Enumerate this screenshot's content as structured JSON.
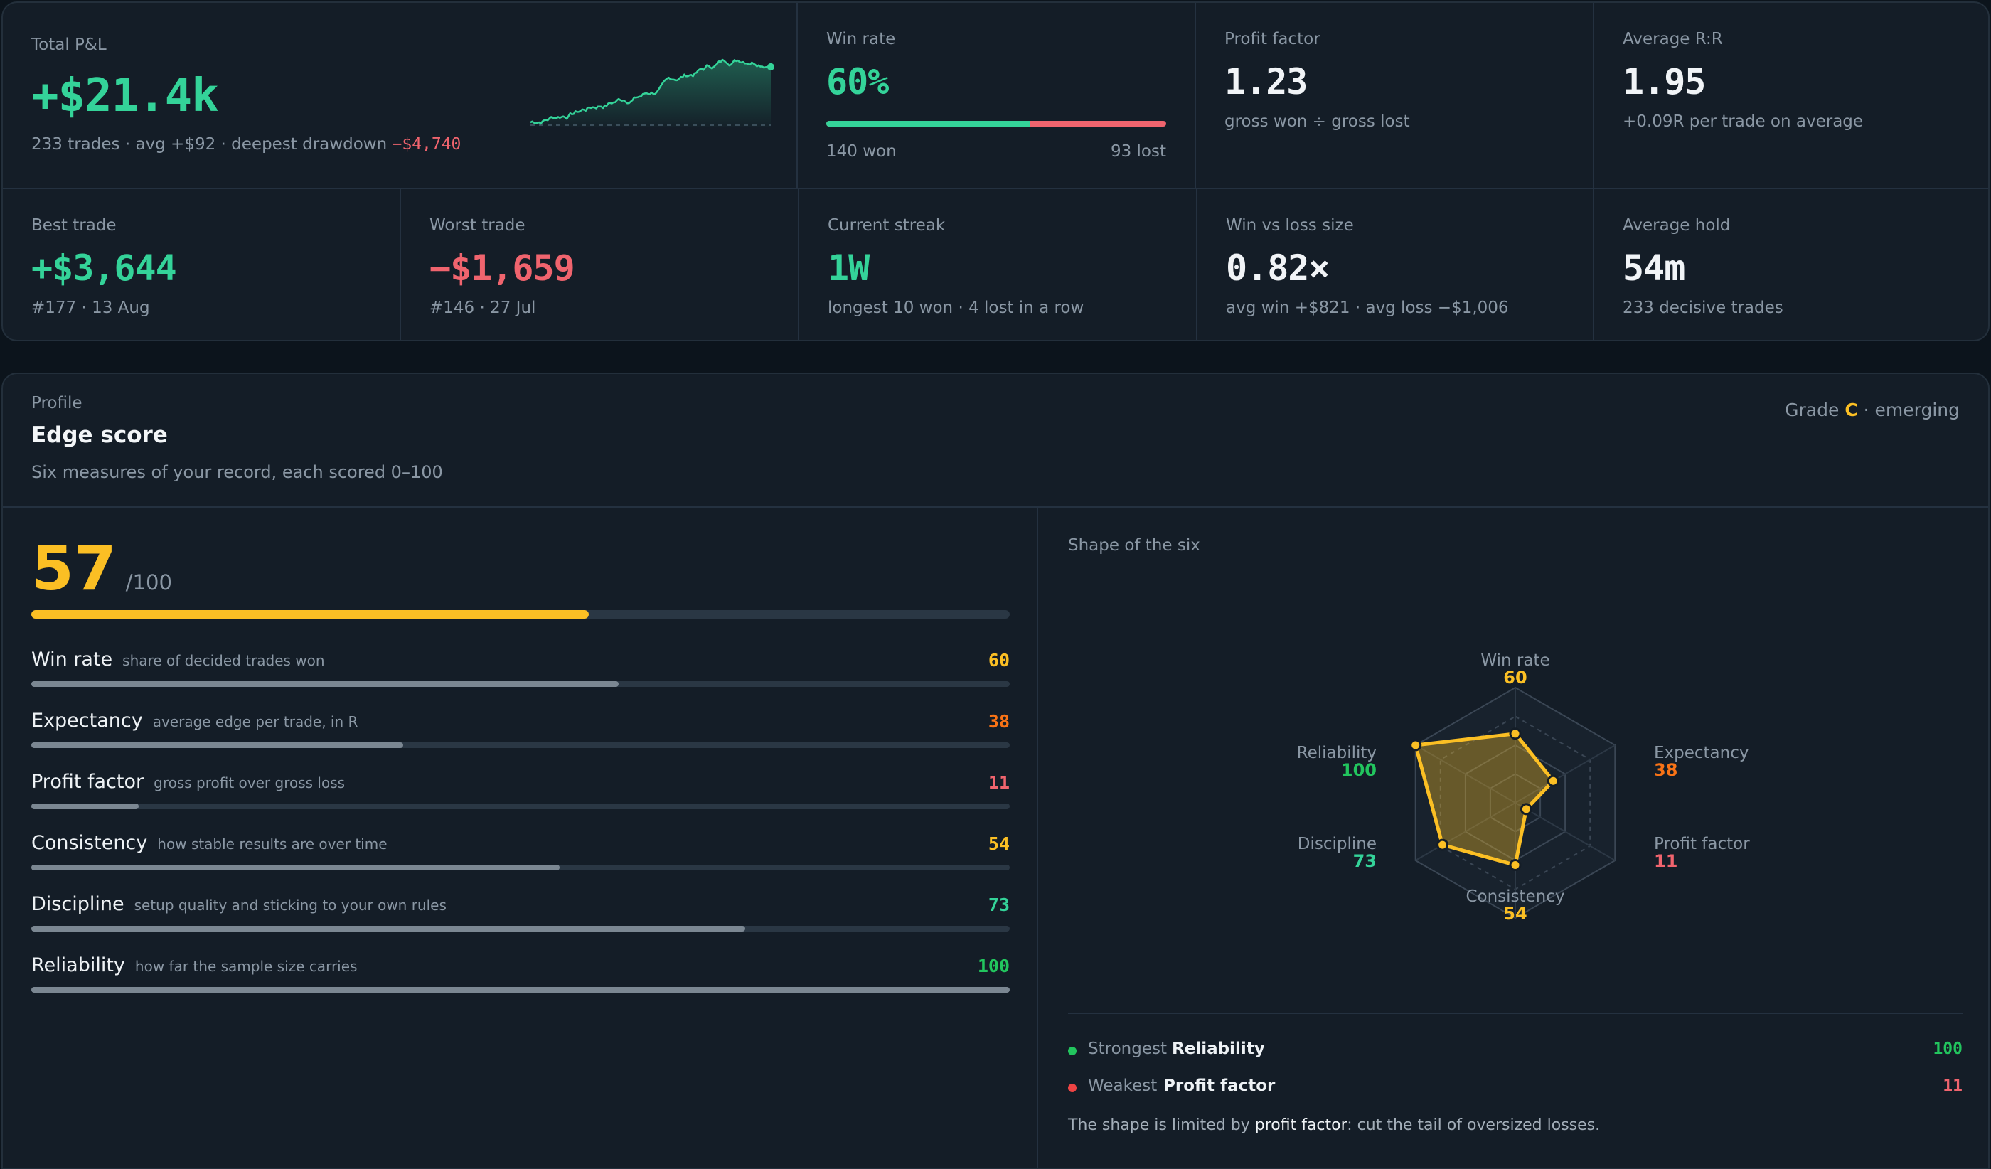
{
  "colors": {
    "green": "#34d399",
    "red": "#f0646e",
    "yellow": "#fbbf24",
    "orange": "#f97316",
    "grey_bar": "#7b8792"
  },
  "stats": {
    "total_pnl": {
      "label": "Total P&L",
      "value": "+$21.4k",
      "summary": "233 trades · avg +$92 · deepest drawdown ",
      "drawdown": "−$4,740"
    },
    "win_rate": {
      "label": "Win rate",
      "value": "60%",
      "won": "140 won",
      "lost": "93 lost",
      "won_count": 140,
      "lost_count": 93
    },
    "profit_factor": {
      "label": "Profit factor",
      "value": "1.23",
      "sub": "gross won ÷ gross lost"
    },
    "average_rr": {
      "label": "Average R:R",
      "value": "1.95",
      "sub": "+0.09R per trade on average"
    },
    "best_trade": {
      "label": "Best trade",
      "value": "+$3,644",
      "sub": "#177 · 13 Aug"
    },
    "worst_trade": {
      "label": "Worst trade",
      "value": "−$1,659",
      "sub": "#146 · 27 Jul"
    },
    "current_streak": {
      "label": "Current streak",
      "value": "1W",
      "sub": "longest 10 won · 4 lost in a row"
    },
    "win_vs_loss": {
      "label": "Win vs loss size",
      "value": "0.82×",
      "sub": "avg win +$821 · avg loss −$1,006"
    },
    "average_hold": {
      "label": "Average hold",
      "value": "54m",
      "sub": "233 decisive trades"
    }
  },
  "edge": {
    "eyebrow": "Profile",
    "title": "Edge score",
    "subtitle": "Six measures of your record, each scored 0–100",
    "grade_prefix": "Grade ",
    "grade": "C",
    "grade_suffix": " · emerging",
    "score": "57",
    "score_max": "/100",
    "score_value": 57,
    "metrics": [
      {
        "name": "Win rate",
        "desc": "share of decided trades won",
        "value": 60,
        "value_color": "#fbbf24"
      },
      {
        "name": "Expectancy",
        "desc": "average edge per trade, in R",
        "value": 38,
        "value_color": "#f97316"
      },
      {
        "name": "Profit factor",
        "desc": "gross profit over gross loss",
        "value": 11,
        "value_color": "#f0646e"
      },
      {
        "name": "Consistency",
        "desc": "how stable results are over time",
        "value": 54,
        "value_color": "#fbbf24"
      },
      {
        "name": "Discipline",
        "desc": "setup quality and sticking to your own rules",
        "value": 73,
        "value_color": "#34d399"
      },
      {
        "name": "Reliability",
        "desc": "how far the sample size carries",
        "value": 100,
        "value_color": "#22c55e"
      }
    ],
    "radar": {
      "title": "Shape of the six",
      "strongest_label": "Strongest",
      "strongest_name": "Reliability",
      "strongest_value": "100",
      "weakest_label": "Weakest",
      "weakest_name": "Profit factor",
      "weakest_value": "11",
      "note_prefix": "The shape is limited by ",
      "note_emph": "profit factor",
      "note_suffix": ": cut the tail of oversized losses."
    }
  }
}
